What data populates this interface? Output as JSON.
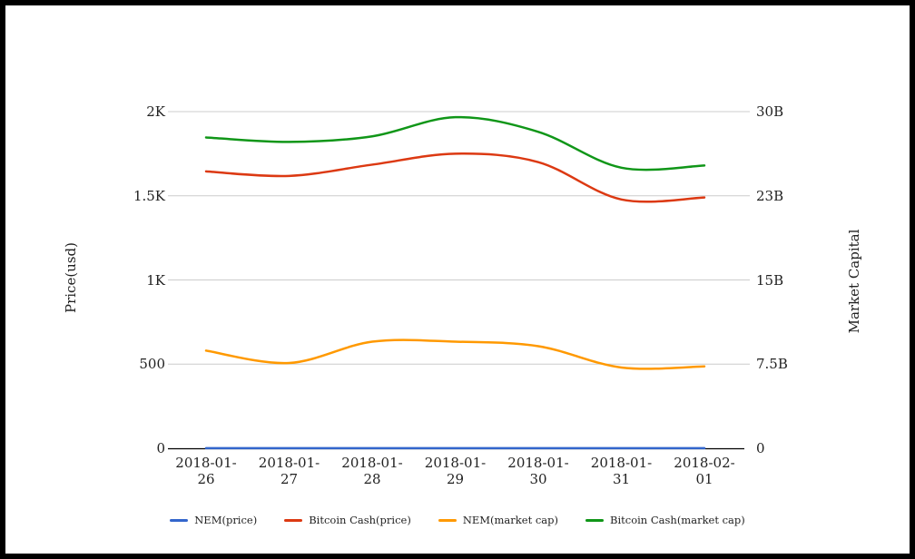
{
  "chart_data": {
    "type": "line",
    "title": "",
    "x": [
      "2018-01-26",
      "2018-01-27",
      "2018-01-28",
      "2018-01-29",
      "2018-01-30",
      "2018-01-31",
      "2018-02-01"
    ],
    "series": [
      {
        "name": "NEM(price)",
        "axis": "left",
        "color": "#3366cc",
        "values": [
          1,
          1,
          1,
          1,
          1,
          1,
          1
        ]
      },
      {
        "name": "Bitcoin Cash(price)",
        "axis": "left",
        "color": "#dc3912",
        "values": [
          1645,
          1618,
          1685,
          1750,
          1700,
          1478,
          1490
        ]
      },
      {
        "name": "NEM(market cap)",
        "axis": "right",
        "color": "#ff9900",
        "values": [
          8.7,
          7.6,
          9.5,
          9.5,
          9.1,
          7.2,
          7.3
        ]
      },
      {
        "name": "Bitcoin Cash(market cap)",
        "axis": "right",
        "color": "#109618",
        "values": [
          27.7,
          27.3,
          27.8,
          29.5,
          28.2,
          25.0,
          25.2
        ]
      }
    ],
    "left_axis": {
      "title": "Price(usd)",
      "tick_labels": [
        "0",
        "500",
        "1K",
        "1.5K",
        "2K"
      ],
      "tick_values": [
        0,
        500,
        1000,
        1500,
        2000
      ],
      "range": [
        0,
        2000
      ],
      "unit": "USD"
    },
    "right_axis": {
      "title": "Market Capital",
      "tick_labels": [
        "0",
        "7.5B",
        "15B",
        "23B",
        "30B"
      ],
      "tick_values": [
        0,
        7.5,
        15,
        22.5,
        30
      ],
      "range": [
        0,
        30
      ],
      "unit": "B USD"
    },
    "legend": {
      "position": "bottom",
      "entries": [
        "NEM(price)",
        "Bitcoin Cash(price)",
        "NEM(market cap)",
        "Bitcoin Cash(market cap)"
      ]
    },
    "grid": true
  },
  "colors": {
    "background": "#ffffff",
    "frame_border": "#000000",
    "gridline": "#cccccc",
    "axis_line": "#000000",
    "text": "#222222"
  }
}
